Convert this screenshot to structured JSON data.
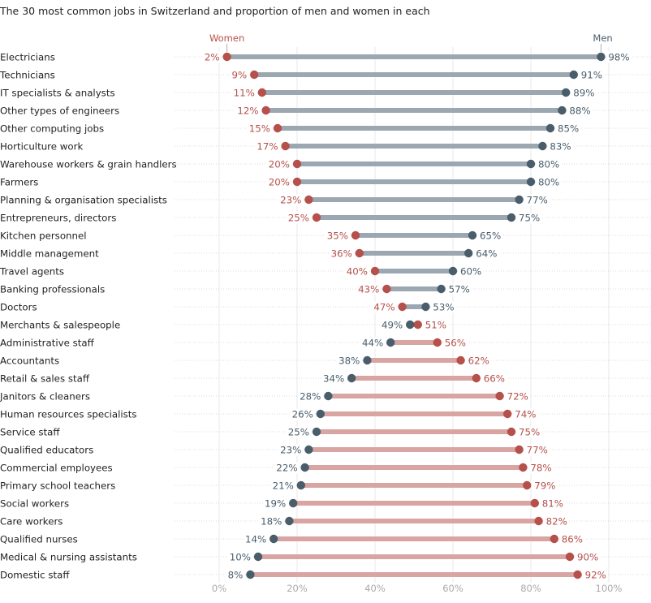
{
  "chart_data": {
    "type": "dumbbell",
    "title": "The 30 most common jobs in Switzerland and proportion of men and women in each",
    "xlabel": "",
    "ylabel": "",
    "xlim": [
      0,
      100
    ],
    "x_ticks": [
      "0%",
      "20%",
      "40%",
      "60%",
      "80%",
      "100%"
    ],
    "x_tick_values": [
      0,
      20,
      40,
      60,
      80,
      100
    ],
    "grid": true,
    "value_suffix": "%",
    "legend": [
      {
        "name": "Women",
        "color": "#b5504a",
        "placement": "top-left of plot, above first row"
      },
      {
        "name": "Men",
        "color": "#4a5d6b",
        "placement": "top-right of plot, above first row"
      }
    ],
    "colors": {
      "women_dot": "#b5504a",
      "men_dot": "#4a5d6b",
      "men_majority_bar": "#9ba8b1",
      "women_majority_bar": "#d9a5a3",
      "grid": "#e8e8e8",
      "row_guide": "#cfcfcf",
      "tick_text": "#aaaaaa"
    },
    "categories": [
      "Electricians",
      "Technicians",
      "IT specialists & analysts",
      "Other types of engineers",
      "Other computing jobs",
      "Horticulture work",
      "Warehouse workers & grain handlers",
      "Farmers",
      "Planning & organisation specialists",
      "Entrepreneurs, directors",
      "Kitchen personnel",
      "Middle management",
      "Travel agents",
      "Banking professionals",
      "Doctors",
      "Merchants & salespeople",
      "Administrative staff",
      "Accountants",
      "Retail & sales staff",
      "Janitors & cleaners",
      "Human resources specialists",
      "Service staff",
      "Qualified educators",
      "Commercial employees",
      "Primary school teachers",
      "Social workers",
      "Care workers",
      "Qualified nurses",
      "Medical & nursing assistants",
      "Domestic staff"
    ],
    "series": [
      {
        "name": "Women",
        "values": [
          2,
          9,
          11,
          12,
          15,
          17,
          20,
          20,
          23,
          25,
          35,
          36,
          40,
          43,
          47,
          51,
          56,
          62,
          66,
          72,
          74,
          75,
          77,
          78,
          79,
          81,
          82,
          86,
          90,
          92
        ]
      },
      {
        "name": "Men",
        "values": [
          98,
          91,
          89,
          88,
          85,
          83,
          80,
          80,
          77,
          75,
          65,
          64,
          60,
          57,
          53,
          49,
          44,
          38,
          34,
          28,
          26,
          25,
          23,
          22,
          21,
          19,
          18,
          14,
          10,
          8
        ]
      }
    ]
  }
}
